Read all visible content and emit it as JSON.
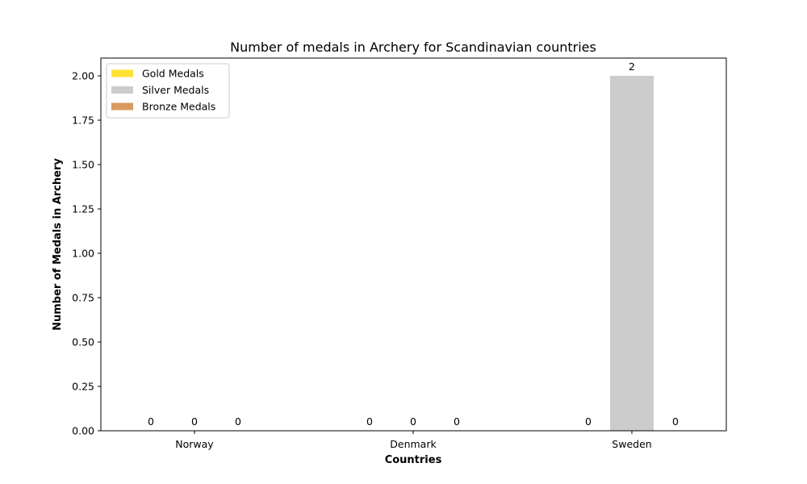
{
  "chart_data": {
    "type": "bar",
    "title": "Number of medals in Archery for Scandinavian countries",
    "xlabel": "Countries",
    "ylabel": "Number of Medals in Archery",
    "categories": [
      "Norway",
      "Denmark",
      "Sweden"
    ],
    "series": [
      {
        "name": "Gold Medals",
        "values": [
          0,
          0,
          0
        ],
        "color": "#ffe135"
      },
      {
        "name": "Silver Medals",
        "values": [
          0,
          0,
          2
        ],
        "color": "#cccccc"
      },
      {
        "name": "Bronze Medals",
        "values": [
          0,
          0,
          0
        ],
        "color": "#d89a5e"
      }
    ],
    "ylim": [
      0,
      2.1
    ],
    "yticks": [
      "0.00",
      "0.25",
      "0.50",
      "0.75",
      "1.00",
      "1.25",
      "1.50",
      "1.75",
      "2.00"
    ],
    "grid": false,
    "legend_position": "top-left"
  }
}
